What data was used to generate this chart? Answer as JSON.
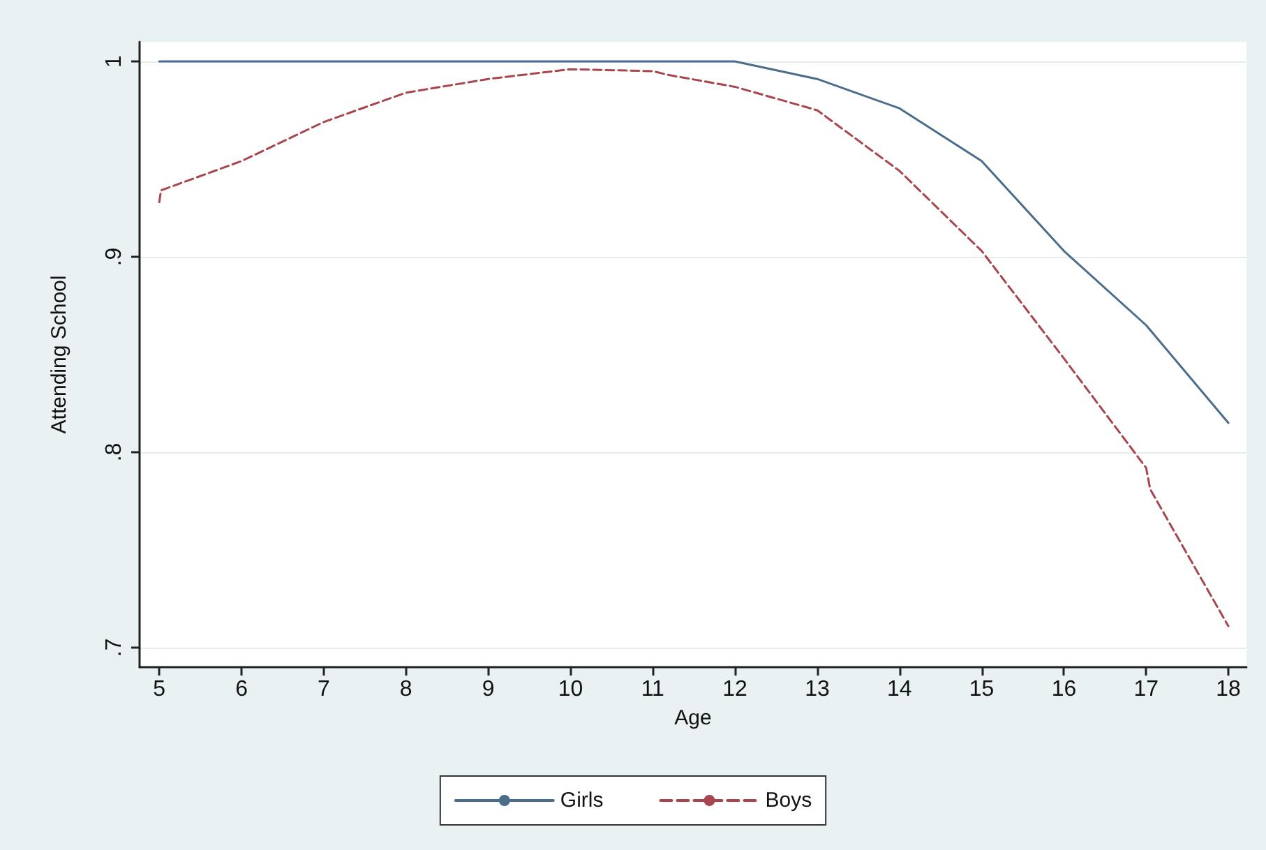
{
  "chart_data": {
    "type": "line",
    "xlabel": "Age",
    "ylabel": "Attending School",
    "xlim": [
      4.76,
      18.22
    ],
    "xticks": [
      5,
      6,
      7,
      8,
      9,
      10,
      11,
      12,
      13,
      14,
      15,
      16,
      17,
      18
    ],
    "ylim": [
      0.69,
      1.01
    ],
    "yticks": [
      {
        "value": 0.7,
        "label": ".7"
      },
      {
        "value": 0.8,
        "label": ".8"
      },
      {
        "value": 0.9,
        "label": ".9"
      },
      {
        "value": 1,
        "label": "1"
      }
    ],
    "grid": "y",
    "legend": "bottom",
    "marker": "none",
    "series": [
      {
        "name": "Girls",
        "color": "#4a6d8c",
        "line_style": "solid",
        "x": [
          5,
          12,
          13,
          14,
          15,
          16,
          17,
          18
        ],
        "values": [
          1,
          1,
          0.991,
          0.976,
          0.949,
          0.903,
          0.865,
          0.815
        ]
      },
      {
        "name": "Boys",
        "color": "#a8464f",
        "line_style": "dashed",
        "x": [
          5,
          5.02,
          6,
          7,
          8,
          9,
          10,
          11,
          11.2,
          12,
          13,
          14,
          15,
          16,
          17,
          17.05,
          18
        ],
        "values": [
          0.928,
          0.934,
          0.949,
          0.969,
          0.984,
          0.991,
          0.996,
          0.995,
          0.993,
          0.987,
          0.975,
          0.944,
          0.903,
          0.848,
          0.792,
          0.781,
          0.711
        ]
      }
    ]
  }
}
